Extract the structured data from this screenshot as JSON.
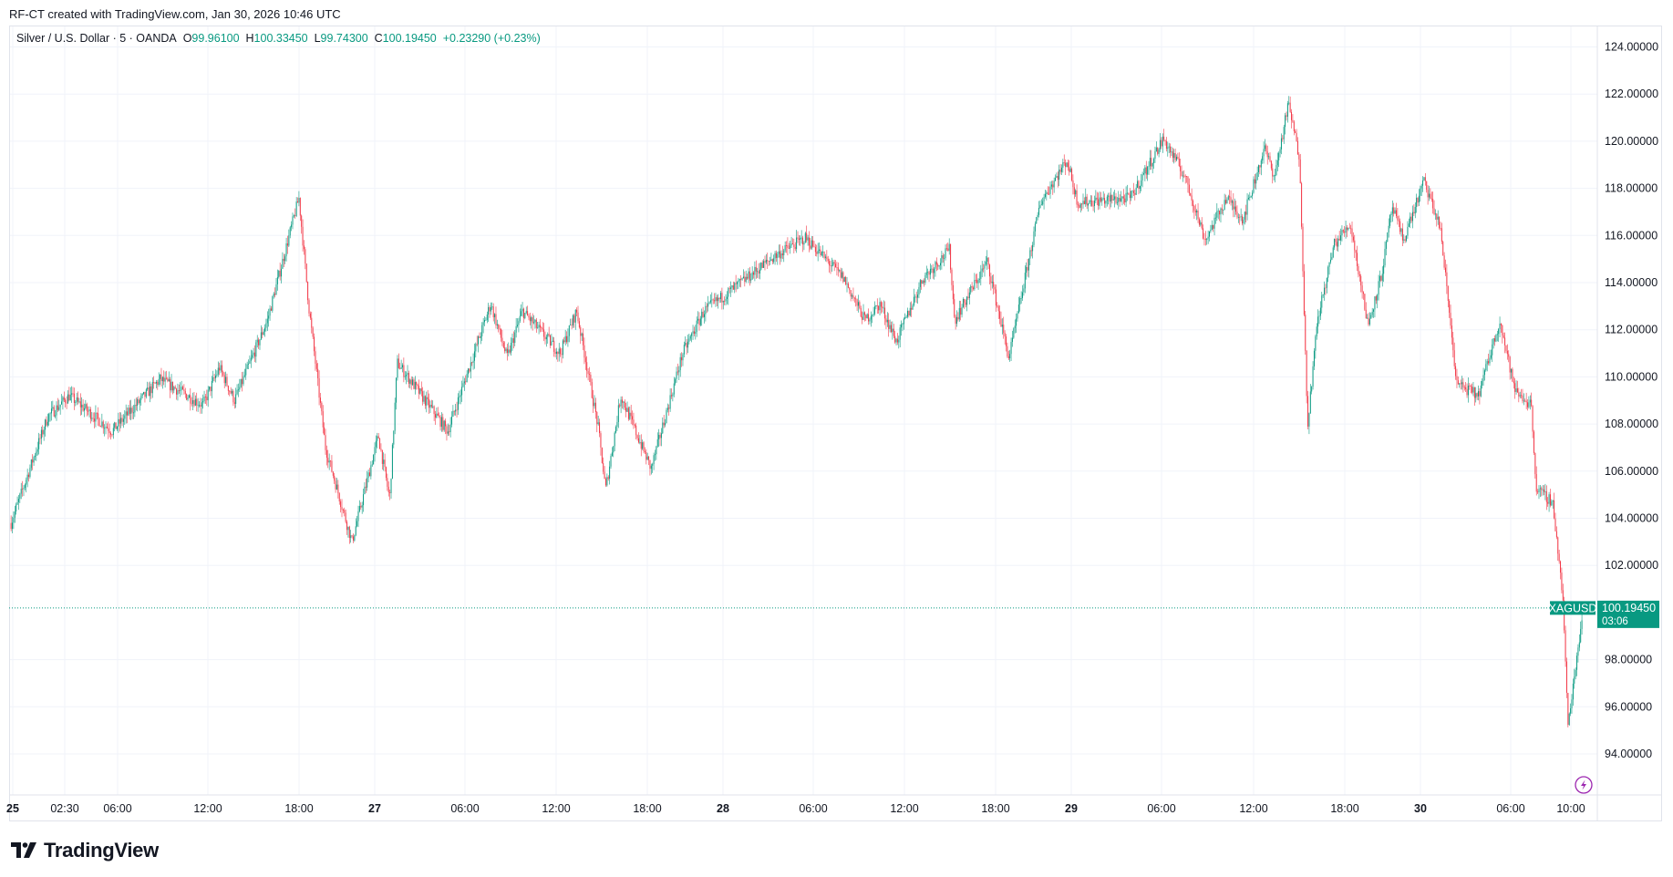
{
  "credit": "RF-CT created with TradingView.com, Jan 30, 2026 10:46 UTC",
  "legend": {
    "symbol": "Silver / U.S. Dollar · 5 · OANDA",
    "o_label": "O",
    "o": "99.96100",
    "h_label": "H",
    "h": "100.33450",
    "l_label": "L",
    "l": "99.74300",
    "c_label": "C",
    "c": "100.19450",
    "change": "+0.23290 (+0.23%)"
  },
  "last_price": {
    "ticker": "XAGUSD",
    "price": "100.19450",
    "countdown": "03:06",
    "value": 100.1945
  },
  "logo": "TradingView",
  "colors": {
    "up": "#089981",
    "down": "#f23645",
    "grid": "#f0f3fa",
    "alert": "#9c27b0"
  },
  "icons": {
    "alert": "lightning-alert-icon",
    "logo": "tradingview-logo-icon"
  },
  "chart_data": {
    "type": "candlestick",
    "interval": "5 minutes",
    "y_axis_ticks": [
      "124.00000",
      "122.00000",
      "120.00000",
      "118.00000",
      "116.00000",
      "114.00000",
      "112.00000",
      "110.00000",
      "108.00000",
      "106.00000",
      "104.00000",
      "102.00000",
      "98.00000",
      "96.00000",
      "94.00000"
    ],
    "ylim": [
      93,
      124.5
    ],
    "x_axis_ticks": [
      {
        "label": "25",
        "bold": true
      },
      {
        "label": "02:30"
      },
      {
        "label": "06:00"
      },
      {
        "label": "12:00"
      },
      {
        "label": "18:00"
      },
      {
        "label": "27",
        "bold": true
      },
      {
        "label": "06:00"
      },
      {
        "label": "12:00"
      },
      {
        "label": "18:00"
      },
      {
        "label": "28",
        "bold": true
      },
      {
        "label": "06:00"
      },
      {
        "label": "12:00"
      },
      {
        "label": "18:00"
      },
      {
        "label": "29",
        "bold": true
      },
      {
        "label": "06:00"
      },
      {
        "label": "12:00"
      },
      {
        "label": "18:00"
      },
      {
        "label": "30",
        "bold": true
      },
      {
        "label": "06:00"
      },
      {
        "label": "10:00"
      }
    ],
    "grid": true,
    "approx_price_path": [
      [
        "01-25 23:00",
        103.8
      ],
      [
        "01-26 01:25",
        108.3
      ],
      [
        "01-26 02:50",
        109.2
      ],
      [
        "01-26 05:40",
        107.7
      ],
      [
        "01-26 08:50",
        109.9
      ],
      [
        "01-26 11:40",
        108.8
      ],
      [
        "01-26 12:45",
        110.4
      ],
      [
        "01-26 13:45",
        109.0
      ],
      [
        "01-26 15:55",
        112.4
      ],
      [
        "01-26 18:00",
        117.6
      ],
      [
        "01-26 18:40",
        112.9
      ],
      [
        "01-26 19:45",
        107.0
      ],
      [
        "01-26 21:30",
        103.0
      ],
      [
        "01-27 00:15",
        107.5
      ],
      [
        "01-27 01:00",
        104.8
      ],
      [
        "01-27 01:30",
        110.6
      ],
      [
        "01-27 04:50",
        107.7
      ],
      [
        "01-27 07:40",
        113.1
      ],
      [
        "01-27 08:45",
        110.8
      ],
      [
        "01-27 09:45",
        112.8
      ],
      [
        "01-27 12:15",
        111.0
      ],
      [
        "01-27 13:20",
        112.8
      ],
      [
        "01-27 14:45",
        107.9
      ],
      [
        "01-27 15:15",
        105.2
      ],
      [
        "01-27 16:15",
        109.2
      ],
      [
        "01-27 18:15",
        106.1
      ],
      [
        "01-27 20:20",
        111.0
      ],
      [
        "01-27 21:45",
        112.8
      ],
      [
        "01-28 01:10",
        114.0
      ],
      [
        "01-28 03:20",
        115.1
      ],
      [
        "01-28 05:25",
        115.9
      ],
      [
        "01-28 07:55",
        114.2
      ],
      [
        "01-28 09:20",
        112.4
      ],
      [
        "01-28 10:20",
        113.1
      ],
      [
        "01-28 11:25",
        111.5
      ],
      [
        "01-28 13:10",
        114.2
      ],
      [
        "01-28 14:55",
        115.4
      ],
      [
        "01-28 15:15",
        112.4
      ],
      [
        "01-28 17:25",
        114.9
      ],
      [
        "01-28 18:50",
        110.8
      ],
      [
        "01-28 20:55",
        117.4
      ],
      [
        "01-28 23:40",
        119.2
      ],
      [
        "01-29 00:25",
        117.4
      ],
      [
        "01-29 03:55",
        117.6
      ],
      [
        "01-29 06:05",
        120.1
      ],
      [
        "01-29 07:30",
        118.5
      ],
      [
        "01-29 08:50",
        115.8
      ],
      [
        "01-29 10:15",
        117.6
      ],
      [
        "01-29 11:20",
        116.7
      ],
      [
        "01-29 12:45",
        119.7
      ],
      [
        "01-29 13:25",
        118.5
      ],
      [
        "01-29 14:20",
        121.6
      ],
      [
        "01-29 15:05",
        119.2
      ],
      [
        "01-29 15:35",
        107.9
      ],
      [
        "01-29 16:15",
        112.4
      ],
      [
        "01-29 17:20",
        115.6
      ],
      [
        "01-29 18:25",
        116.5
      ],
      [
        "01-29 19:35",
        112.2
      ],
      [
        "01-29 20:30",
        114.4
      ],
      [
        "01-29 21:10",
        117.2
      ],
      [
        "01-29 21:55",
        115.8
      ],
      [
        "01-30 00:15",
        118.3
      ],
      [
        "01-30 01:20",
        116.3
      ],
      [
        "01-30 02:25",
        109.7
      ],
      [
        "01-30 03:50",
        109.2
      ],
      [
        "01-30 05:15",
        112.4
      ],
      [
        "01-30 06:15",
        109.4
      ],
      [
        "01-30 07:20",
        108.8
      ],
      [
        "01-30 07:40",
        105.2
      ],
      [
        "01-30 08:45",
        104.7
      ],
      [
        "01-30 09:25",
        100.6
      ],
      [
        "01-30 09:45",
        95.2
      ],
      [
        "01-30 10:45",
        100.1945
      ]
    ]
  }
}
